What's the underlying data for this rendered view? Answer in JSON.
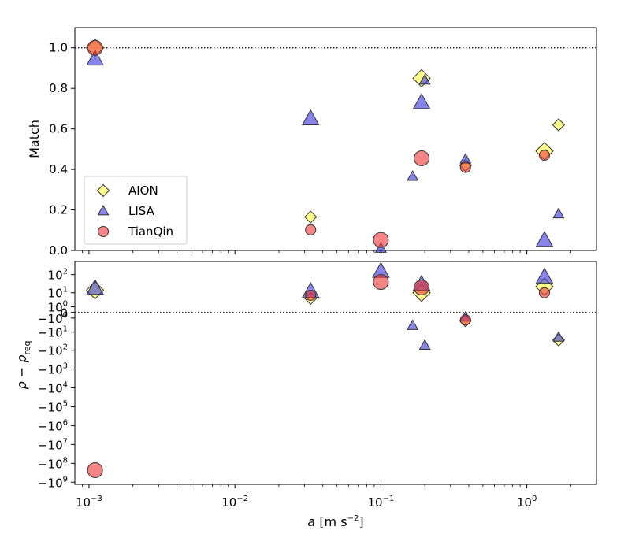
{
  "chart_data": [
    {
      "type": "scatter",
      "panel": "top",
      "ylabel": "Match",
      "xscale": "log",
      "xlim": [
        0.0008,
        3.0
      ],
      "ylim": [
        0.0,
        1.1
      ],
      "yticks": [
        {
          "v": 0.0,
          "label": "0.0"
        },
        {
          "v": 0.2,
          "label": "0.2"
        },
        {
          "v": 0.4,
          "label": "0.4"
        },
        {
          "v": 0.6,
          "label": "0.6"
        },
        {
          "v": 0.8,
          "label": "0.8"
        },
        {
          "v": 1.0,
          "label": "1.0"
        }
      ],
      "reference_line": {
        "y": 1.0,
        "style": "dotted"
      },
      "legend_position": "lower-left",
      "series": [
        {
          "name": "AION",
          "marker": "diamond",
          "color": "#ffff66",
          "points": [
            {
              "x": 0.0011,
              "y": 1.0,
              "size": "large"
            },
            {
              "x": 0.033,
              "y": 0.165,
              "size": "small"
            },
            {
              "x": 0.19,
              "y": 0.85,
              "size": "large"
            },
            {
              "x": 0.38,
              "y": 0.42,
              "size": "small"
            },
            {
              "x": 1.32,
              "y": 0.49,
              "size": "large"
            },
            {
              "x": 1.65,
              "y": 0.62,
              "size": "small"
            }
          ]
        },
        {
          "name": "LISA",
          "marker": "triangle",
          "color": "#3333dd",
          "points": [
            {
              "x": 0.0011,
              "y": 0.945,
              "size": "large"
            },
            {
              "x": 0.033,
              "y": 0.65,
              "size": "large"
            },
            {
              "x": 0.1,
              "y": 0.01,
              "size": "small"
            },
            {
              "x": 0.165,
              "y": 0.365,
              "size": "small"
            },
            {
              "x": 0.19,
              "y": 0.73,
              "size": "large"
            },
            {
              "x": 0.2,
              "y": 0.84,
              "size": "small"
            },
            {
              "x": 0.38,
              "y": 0.45,
              "size": "small"
            },
            {
              "x": 1.32,
              "y": 0.05,
              "size": "large"
            },
            {
              "x": 1.65,
              "y": 0.18,
              "size": "small"
            }
          ]
        },
        {
          "name": "TianQin",
          "marker": "circle",
          "color": "#ee3333",
          "points": [
            {
              "x": 0.0011,
              "y": 1.0,
              "size": "large"
            },
            {
              "x": 0.033,
              "y": 0.102,
              "size": "small"
            },
            {
              "x": 0.1,
              "y": 0.052,
              "size": "large"
            },
            {
              "x": 0.19,
              "y": 0.455,
              "size": "large"
            },
            {
              "x": 0.38,
              "y": 0.41,
              "size": "small"
            },
            {
              "x": 1.32,
              "y": 0.47,
              "size": "small"
            }
          ]
        }
      ]
    },
    {
      "type": "scatter",
      "panel": "bottom",
      "ylabel": "ρ − ρreq",
      "ylabel_parts": {
        "main": "ρ − ρ",
        "sub": "req"
      },
      "xlabel": "a [m s⁻²]",
      "xlabel_parts": {
        "var": "a",
        "unit": "[m s",
        "exp": "−2",
        "close": "]"
      },
      "xscale": "log",
      "yscale": "symlog",
      "xlim": [
        0.0008,
        3.0
      ],
      "ylim": [
        -1300000000,
        500
      ],
      "xticks": [
        {
          "v": 0.001,
          "base": "10",
          "exp": "−3"
        },
        {
          "v": 0.01,
          "base": "10",
          "exp": "−2"
        },
        {
          "v": 0.1,
          "base": "10",
          "exp": "−1"
        },
        {
          "v": 1.0,
          "base": "10",
          "exp": "0"
        }
      ],
      "yticks": [
        {
          "v": 100,
          "base": "10",
          "exp": "2",
          "sign": ""
        },
        {
          "v": 10,
          "base": "10",
          "exp": "1",
          "sign": ""
        },
        {
          "v": 1,
          "base": "10",
          "exp": "0",
          "sign": ""
        },
        {
          "v": 0,
          "base": "0",
          "exp": "",
          "sign": ""
        },
        {
          "v": -1,
          "base": "10",
          "exp": "0",
          "sign": "−"
        },
        {
          "v": -10,
          "base": "10",
          "exp": "1",
          "sign": "−"
        },
        {
          "v": -100,
          "base": "10",
          "exp": "2",
          "sign": "−"
        },
        {
          "v": -1000,
          "base": "10",
          "exp": "3",
          "sign": "−"
        },
        {
          "v": -10000,
          "base": "10",
          "exp": "4",
          "sign": "−"
        },
        {
          "v": -100000,
          "base": "10",
          "exp": "5",
          "sign": "−"
        },
        {
          "v": -1000000,
          "base": "10",
          "exp": "6",
          "sign": "−"
        },
        {
          "v": -10000000,
          "base": "10",
          "exp": "7",
          "sign": "−"
        },
        {
          "v": -100000000,
          "base": "10",
          "exp": "8",
          "sign": "−"
        },
        {
          "v": -1000000000,
          "base": "10",
          "exp": "9",
          "sign": "−"
        }
      ],
      "reference_line": {
        "y": 0,
        "style": "dotted"
      },
      "series": [
        {
          "name": "AION",
          "marker": "diamond",
          "color": "#ffff66",
          "points": [
            {
              "x": 0.0011,
              "y": 14,
              "size": "large"
            },
            {
              "x": 0.033,
              "y": 4.5,
              "size": "small"
            },
            {
              "x": 0.19,
              "y": 10,
              "size": "large"
            },
            {
              "x": 0.38,
              "y": -1.8,
              "size": "small"
            },
            {
              "x": 1.32,
              "y": 22,
              "size": "large"
            },
            {
              "x": 1.65,
              "y": -28,
              "size": "small"
            }
          ]
        },
        {
          "name": "LISA",
          "marker": "triangle",
          "color": "#3333dd",
          "points": [
            {
              "x": 0.0011,
              "y": 18,
              "size": "large"
            },
            {
              "x": 0.033,
              "y": 12,
              "size": "large"
            },
            {
              "x": 0.1,
              "y": 150,
              "size": "large"
            },
            {
              "x": 0.165,
              "y": -4,
              "size": "small"
            },
            {
              "x": 0.19,
              "y": 30,
              "size": "large"
            },
            {
              "x": 0.2,
              "y": -55,
              "size": "small"
            },
            {
              "x": 0.38,
              "y": -0.8,
              "size": "small"
            },
            {
              "x": 1.32,
              "y": 75,
              "size": "large"
            },
            {
              "x": 1.65,
              "y": -20,
              "size": "small"
            }
          ]
        },
        {
          "name": "TianQin",
          "marker": "circle",
          "color": "#ee3333",
          "points": [
            {
              "x": 0.0011,
              "y": -230000000,
              "size": "large"
            },
            {
              "x": 0.033,
              "y": 7,
              "size": "small"
            },
            {
              "x": 0.1,
              "y": 40,
              "size": "large"
            },
            {
              "x": 0.19,
              "y": 20,
              "size": "large"
            },
            {
              "x": 0.38,
              "y": -1.5,
              "size": "small"
            },
            {
              "x": 1.32,
              "y": 10,
              "size": "small"
            }
          ]
        }
      ]
    }
  ],
  "legend": [
    {
      "label": "AION",
      "marker": "diamond",
      "color": "#ffff66"
    },
    {
      "label": "LISA",
      "marker": "triangle",
      "color": "#3333dd"
    },
    {
      "label": "TianQin",
      "marker": "circle",
      "color": "#ee3333"
    }
  ]
}
